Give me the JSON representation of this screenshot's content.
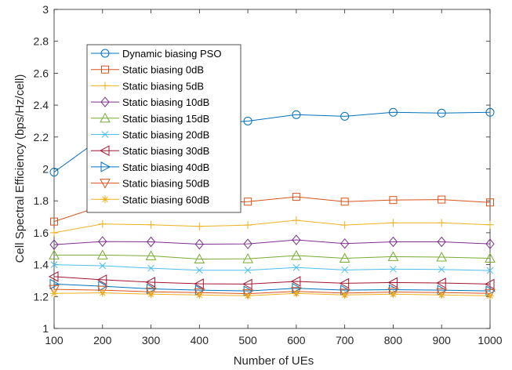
{
  "chart_data": {
    "type": "line",
    "xlabel": "Number of UEs",
    "ylabel": "Cell Spectral Efficiency (bps/Hz/cell)",
    "xlim": [
      100,
      1000
    ],
    "ylim": [
      1,
      3
    ],
    "x": [
      100,
      200,
      300,
      400,
      500,
      600,
      700,
      800,
      900,
      1000
    ],
    "xticks": [
      "100",
      "200",
      "300",
      "400",
      "500",
      "600",
      "700",
      "800",
      "900",
      "1000"
    ],
    "yticks": [
      "1",
      "1.2",
      "1.4",
      "1.6",
      "1.8",
      "2",
      "2.2",
      "2.4",
      "2.6",
      "2.8",
      "3"
    ],
    "legend_position": "upper-left",
    "grid": false,
    "series": [
      {
        "name": "Dynamic biasing PSO",
        "color": "#0072BD",
        "marker": "circle",
        "values": [
          1.98,
          2.2,
          2.25,
          2.28,
          2.3,
          2.34,
          2.33,
          2.355,
          2.35,
          2.355
        ]
      },
      {
        "name": "Static biasing 0dB",
        "color": "#D95319",
        "marker": "square",
        "values": [
          1.67,
          1.77,
          1.775,
          1.785,
          1.795,
          1.825,
          1.795,
          1.805,
          1.808,
          1.79
        ]
      },
      {
        "name": "Static biasing 5dB",
        "color": "#EDB120",
        "marker": "plus",
        "values": [
          1.6,
          1.655,
          1.65,
          1.64,
          1.648,
          1.678,
          1.648,
          1.662,
          1.662,
          1.65
        ]
      },
      {
        "name": "Static biasing 10dB",
        "color": "#7E2F8E",
        "marker": "diamond",
        "values": [
          1.525,
          1.545,
          1.543,
          1.528,
          1.53,
          1.555,
          1.532,
          1.543,
          1.543,
          1.53
        ]
      },
      {
        "name": "Static biasing 15dB",
        "color": "#77AC30",
        "marker": "triangle-up",
        "values": [
          1.46,
          1.46,
          1.455,
          1.435,
          1.437,
          1.457,
          1.44,
          1.45,
          1.447,
          1.44
        ]
      },
      {
        "name": "Static biasing 20dB",
        "color": "#4DBEEE",
        "marker": "x",
        "values": [
          1.4,
          1.393,
          1.378,
          1.365,
          1.365,
          1.382,
          1.367,
          1.372,
          1.37,
          1.363
        ]
      },
      {
        "name": "Static biasing 30dB",
        "color": "#A2142F",
        "marker": "triangle-left",
        "values": [
          1.325,
          1.305,
          1.29,
          1.28,
          1.278,
          1.295,
          1.283,
          1.288,
          1.285,
          1.278
        ]
      },
      {
        "name": "Static biasing 40dB",
        "color": "#0072BD",
        "marker": "triangle-right",
        "values": [
          1.278,
          1.265,
          1.248,
          1.24,
          1.235,
          1.252,
          1.24,
          1.243,
          1.24,
          1.235
        ]
      },
      {
        "name": "Static biasing 50dB",
        "color": "#D95319",
        "marker": "triangle-down",
        "values": [
          1.245,
          1.24,
          1.23,
          1.225,
          1.218,
          1.232,
          1.222,
          1.228,
          1.225,
          1.22
        ]
      },
      {
        "name": "Static biasing 60dB",
        "color": "#EDB120",
        "marker": "asterisk",
        "values": [
          1.22,
          1.223,
          1.215,
          1.21,
          1.205,
          1.22,
          1.21,
          1.215,
          1.21,
          1.205
        ]
      }
    ]
  }
}
